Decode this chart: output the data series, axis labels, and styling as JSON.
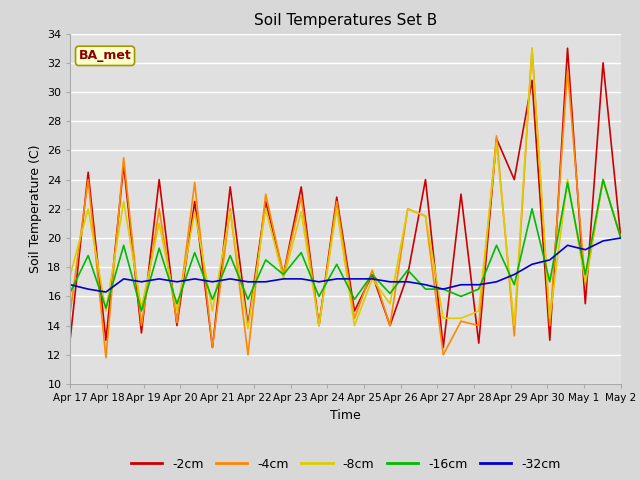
{
  "title": "Soil Temperatures Set B",
  "xlabel": "Time",
  "ylabel": "Soil Temperature (C)",
  "annotation": "BA_met",
  "ylim": [
    10,
    34
  ],
  "yticks": [
    10,
    12,
    14,
    16,
    18,
    20,
    22,
    24,
    26,
    28,
    30,
    32,
    34
  ],
  "x_labels": [
    "Apr 17",
    "Apr 18",
    "Apr 19",
    "Apr 20",
    "Apr 21",
    "Apr 22",
    "Apr 23",
    "Apr 24",
    "Apr 25",
    "Apr 26",
    "Apr 27",
    "Apr 28",
    "Apr 29",
    "Apr 30",
    "May 1",
    "May 2"
  ],
  "series": {
    "-2cm": {
      "color": "#cc0000",
      "data": [
        13.2,
        24.5,
        13.0,
        25.0,
        13.5,
        24.0,
        14.0,
        22.5,
        12.5,
        23.5,
        14.0,
        22.5,
        17.5,
        23.5,
        14.0,
        22.8,
        15.0,
        17.5,
        14.0,
        17.5,
        24.0,
        12.5,
        23.0,
        12.8,
        26.8,
        24.0,
        30.8,
        13.0,
        33.0,
        15.5,
        32.0,
        20.0
      ]
    },
    "-4cm": {
      "color": "#ff8800",
      "data": [
        15.0,
        24.0,
        11.8,
        25.5,
        14.0,
        22.0,
        14.2,
        23.8,
        12.5,
        22.0,
        12.0,
        23.0,
        17.5,
        22.8,
        14.0,
        22.5,
        14.5,
        17.8,
        14.0,
        22.0,
        21.5,
        12.0,
        14.3,
        14.0,
        27.0,
        13.3,
        33.0,
        14.0,
        31.5,
        16.8,
        24.0,
        20.0
      ]
    },
    "-8cm": {
      "color": "#ddcc00",
      "data": [
        17.5,
        22.0,
        15.0,
        22.5,
        15.2,
        21.0,
        15.0,
        21.8,
        15.0,
        21.8,
        13.8,
        22.0,
        17.2,
        21.8,
        14.0,
        22.0,
        14.0,
        17.2,
        15.5,
        22.0,
        21.5,
        14.5,
        14.5,
        15.0,
        26.5,
        14.0,
        33.0,
        14.5,
        24.0,
        17.0,
        24.0,
        20.0
      ]
    },
    "-16cm": {
      "color": "#00bb00",
      "data": [
        16.3,
        18.8,
        15.2,
        19.5,
        15.0,
        19.3,
        15.5,
        19.0,
        15.8,
        18.8,
        15.8,
        18.5,
        17.5,
        19.0,
        16.0,
        18.2,
        15.8,
        17.5,
        16.2,
        17.8,
        16.5,
        16.5,
        16.0,
        16.5,
        19.5,
        16.8,
        22.0,
        17.0,
        23.8,
        17.5,
        24.0,
        20.0
      ]
    },
    "-32cm": {
      "color": "#0000cc",
      "data": [
        16.8,
        16.5,
        16.3,
        17.2,
        17.0,
        17.2,
        17.0,
        17.2,
        17.0,
        17.2,
        17.0,
        17.0,
        17.2,
        17.2,
        17.0,
        17.2,
        17.2,
        17.2,
        17.0,
        17.0,
        16.8,
        16.5,
        16.8,
        16.8,
        17.0,
        17.5,
        18.2,
        18.5,
        19.5,
        19.2,
        19.8,
        20.0
      ]
    }
  },
  "legend_order": [
    "-2cm",
    "-4cm",
    "-8cm",
    "-16cm",
    "-32cm"
  ],
  "fig_facecolor": "#d8d8d8",
  "plot_bg_color": "#e0e0e0"
}
